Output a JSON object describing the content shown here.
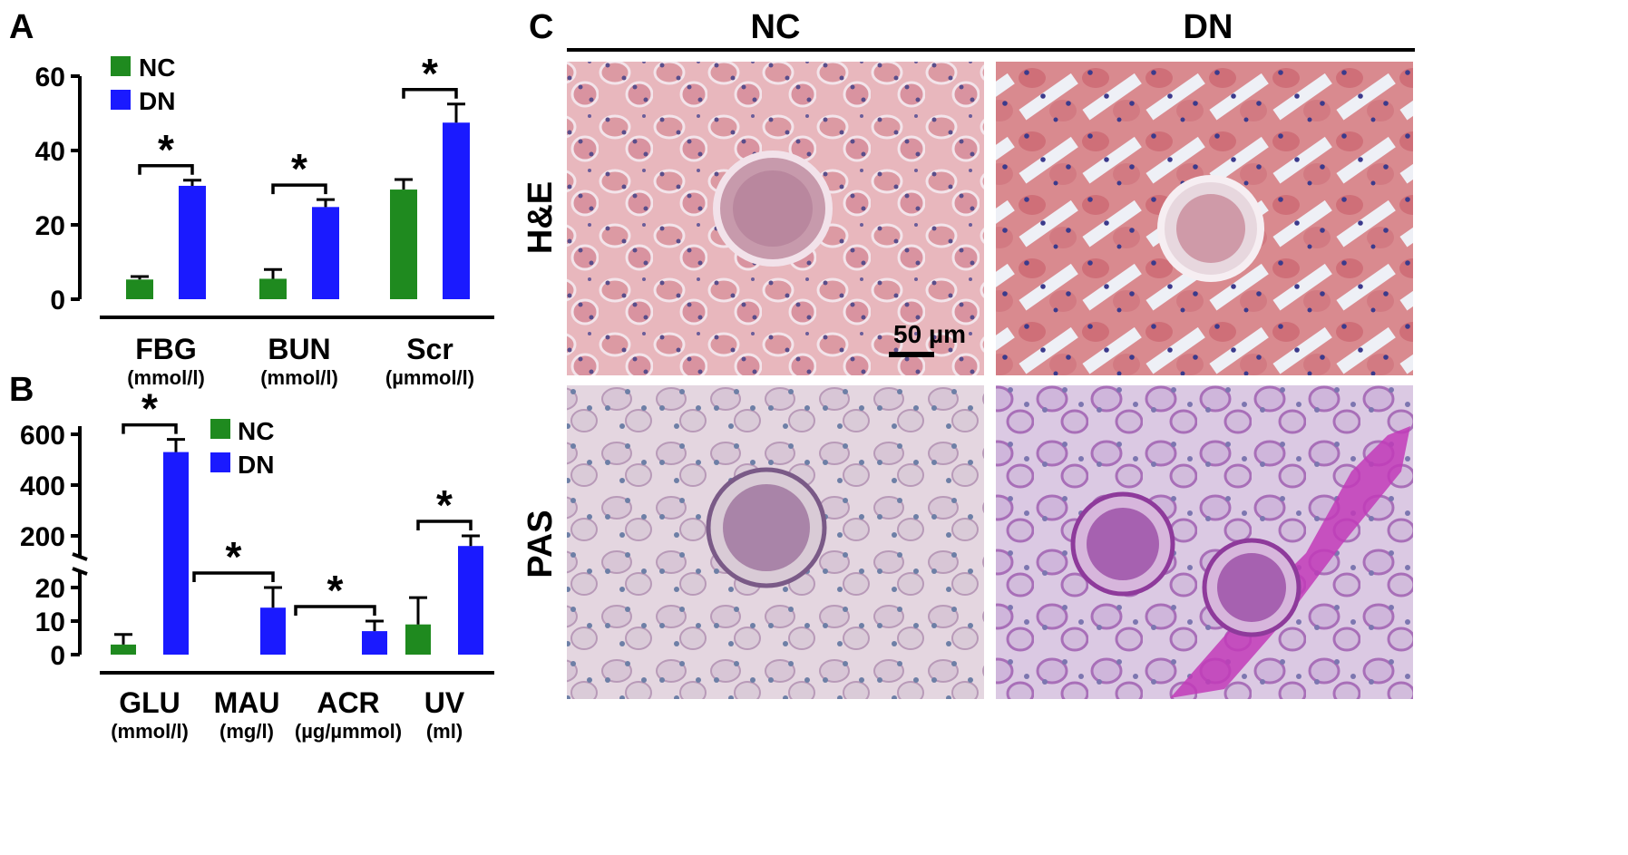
{
  "colors": {
    "NC": "#1f8a1f",
    "DN": "#1a1aff"
  },
  "panelA": {
    "letter": "A",
    "legend": [
      "NC",
      "DN"
    ],
    "chart_data": {
      "type": "bar",
      "categories": [
        "FBG",
        "BUN",
        "Scr"
      ],
      "units": [
        "(mmol/l)",
        "(mmol/l)",
        "(µmmol/l)"
      ],
      "ylim": [
        0,
        60
      ],
      "yticks": [
        "0",
        "20",
        "40",
        "60"
      ],
      "series": [
        {
          "name": "NC",
          "values": [
            5.3,
            5.5,
            29.5
          ],
          "errors": [
            0.8,
            2.5,
            2.7
          ]
        },
        {
          "name": "DN",
          "values": [
            30.5,
            24.8,
            47.5
          ],
          "errors": [
            1.5,
            2.0,
            5.0
          ]
        }
      ],
      "significance": [
        "*",
        "*",
        "*"
      ]
    }
  },
  "panelB": {
    "letter": "B",
    "legend": [
      "NC",
      "DN"
    ],
    "chart_data": {
      "type": "bar",
      "categories": [
        "GLU",
        "MAU",
        "ACR",
        "UV"
      ],
      "units": [
        "(mmol/l)",
        "(mg/l)",
        "(µg/µmmol)",
        "(ml)"
      ],
      "axis_break": true,
      "yticks_lower": [
        "0",
        "10",
        "20"
      ],
      "yticks_upper": [
        "200",
        "400",
        "600"
      ],
      "series": [
        {
          "name": "NC",
          "values": [
            3.0,
            null,
            null,
            9.0
          ],
          "errors": [
            3.0,
            null,
            null,
            8.0
          ]
        },
        {
          "name": "DN",
          "values": [
            530,
            14.0,
            7.0,
            160
          ],
          "errors": [
            50,
            6.0,
            3.0,
            40
          ]
        }
      ],
      "significance": [
        "*",
        "*",
        "*",
        "*"
      ]
    }
  },
  "panelC": {
    "letter": "C",
    "columns": [
      "NC",
      "DN"
    ],
    "rows": [
      "H&E",
      "PAS"
    ],
    "scale_bar": "50 µm"
  }
}
